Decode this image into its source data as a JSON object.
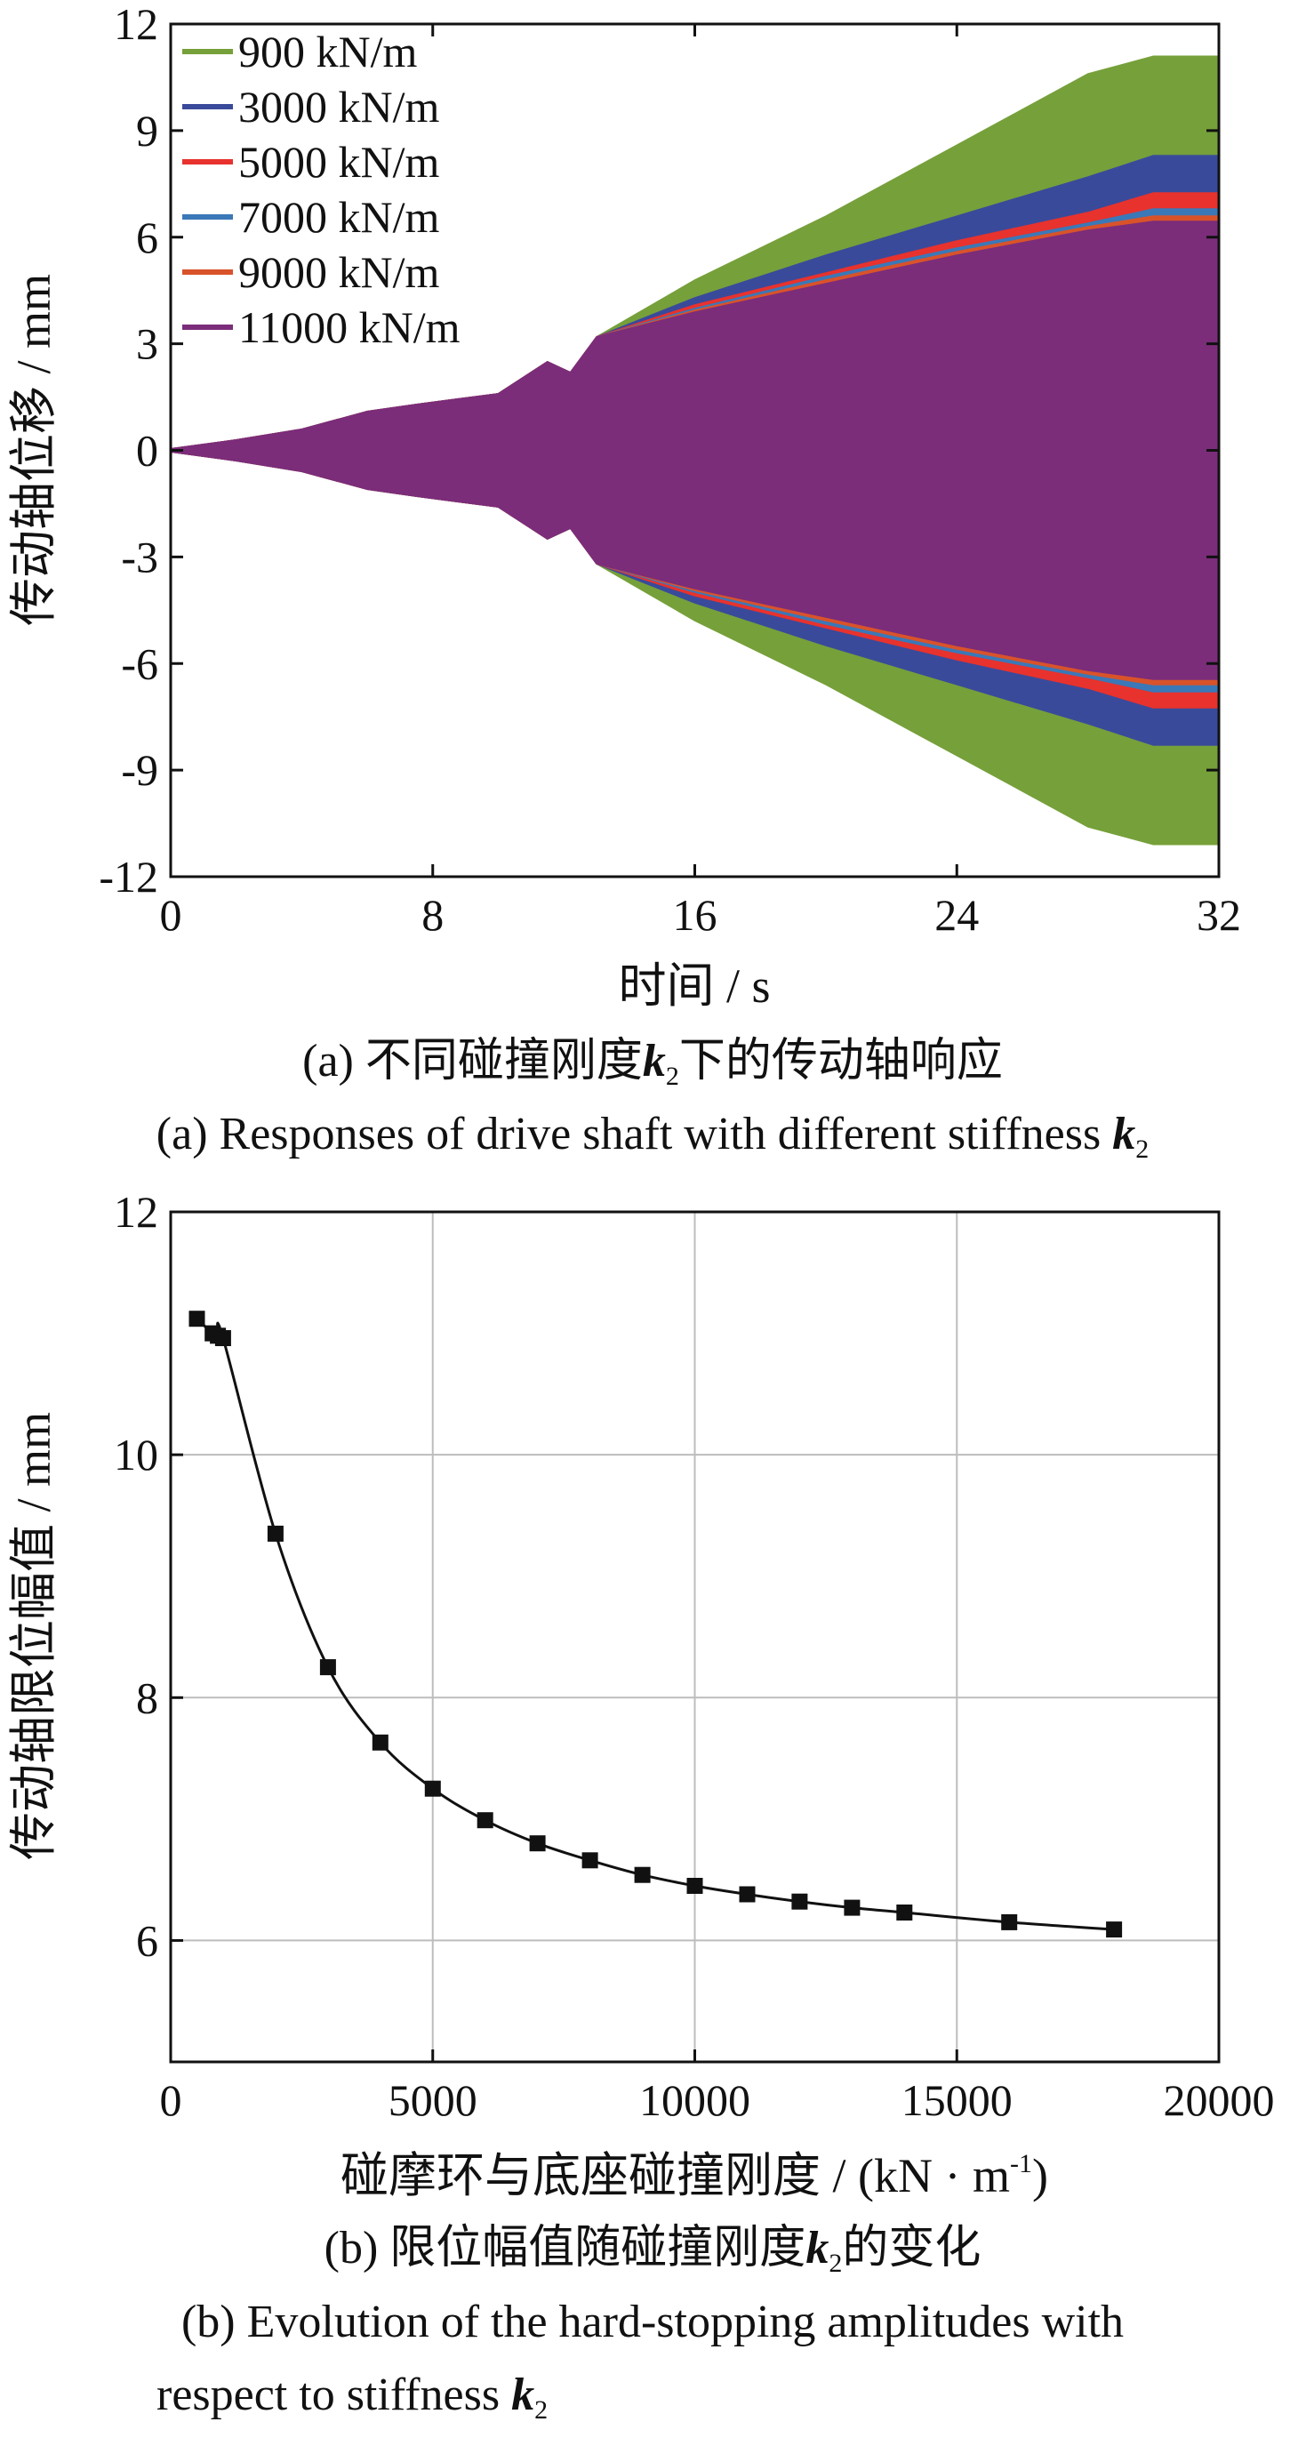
{
  "chart_data": [
    {
      "type": "area",
      "xlabel": "时间 / s",
      "ylabel": "传动轴位移 / mm",
      "xlim": [
        0,
        32
      ],
      "ylim": [
        -12,
        12
      ],
      "xticks": [
        "0",
        "8",
        "16",
        "24",
        "32"
      ],
      "yticks": [
        "12",
        "9",
        "6",
        "3",
        "0",
        "-3",
        "-6",
        "-9",
        "-12"
      ],
      "grid": false,
      "legend_position": "top-left",
      "x": [
        0,
        2,
        4,
        6,
        7.5,
        10,
        11.5,
        12.2,
        13,
        16,
        20,
        24,
        28,
        30,
        32
      ],
      "series": [
        {
          "name": "900 kN/m",
          "color": "#76a03a",
          "values": [
            0.05,
            0.3,
            0.6,
            1.1,
            1.3,
            1.6,
            2.5,
            2.2,
            3.2,
            4.8,
            6.6,
            8.6,
            10.6,
            11.1,
            11.1
          ]
        },
        {
          "name": "3000 kN/m",
          "color": "#3a4a9a",
          "values": [
            0.05,
            0.3,
            0.6,
            1.1,
            1.3,
            1.6,
            2.5,
            2.2,
            3.2,
            4.3,
            5.5,
            6.6,
            7.7,
            8.3,
            8.3
          ]
        },
        {
          "name": "5000 kN/m",
          "color": "#e8322d",
          "values": [
            0.05,
            0.3,
            0.6,
            1.1,
            1.3,
            1.6,
            2.5,
            2.2,
            3.2,
            4.1,
            5.0,
            5.9,
            6.7,
            7.25,
            7.25
          ]
        },
        {
          "name": "7000 kN/m",
          "color": "#3a78b8",
          "values": [
            0.05,
            0.3,
            0.6,
            1.1,
            1.3,
            1.6,
            2.5,
            2.2,
            3.2,
            4.0,
            4.9,
            5.7,
            6.4,
            6.8,
            6.8
          ]
        },
        {
          "name": "9000 kN/m",
          "color": "#d9532a",
          "values": [
            0.05,
            0.3,
            0.6,
            1.1,
            1.3,
            1.6,
            2.5,
            2.2,
            3.2,
            3.95,
            4.8,
            5.6,
            6.3,
            6.6,
            6.6
          ]
        },
        {
          "name": "11000 kN/m",
          "color": "#7b2d7a",
          "values": [
            0.05,
            0.3,
            0.6,
            1.1,
            1.3,
            1.6,
            2.5,
            2.2,
            3.2,
            3.9,
            4.7,
            5.5,
            6.2,
            6.45,
            6.45
          ]
        }
      ]
    },
    {
      "type": "line",
      "xlabel": "碰摩环与底座碰撞刚度 / (kN · m",
      "xlabel_sup": "-1",
      "xlabel_end": ")",
      "ylabel": "传动轴限位幅值 / mm",
      "xlim": [
        0,
        20000
      ],
      "ylim": [
        5,
        12
      ],
      "xticks": [
        "0",
        "5000",
        "10000",
        "15000",
        "20000"
      ],
      "yticks": [
        "6",
        "8",
        "10",
        "12"
      ],
      "grid": true,
      "series": [
        {
          "name": "",
          "color": "#111111",
          "x": [
            500,
            800,
            900,
            1000,
            2000,
            3000,
            4000,
            5000,
            6000,
            7000,
            8000,
            9000,
            10000,
            11000,
            12000,
            13000,
            14000,
            16000,
            18000
          ],
          "values": [
            11.12,
            11.0,
            10.98,
            10.96,
            9.35,
            8.25,
            7.63,
            7.25,
            6.99,
            6.8,
            6.66,
            6.54,
            6.45,
            6.38,
            6.32,
            6.27,
            6.23,
            6.15,
            6.09
          ]
        }
      ]
    }
  ],
  "captions": {
    "a_cn_pre": "(a) 不同碰撞刚度",
    "a_cn_var": "k",
    "a_cn_sub": "2",
    "a_cn_post": "下的传动轴响应",
    "a_en_pre": "(a) Responses of drive shaft with different stiffness ",
    "a_en_var": "k",
    "a_en_sub": "2",
    "b_cn_pre": "(b) 限位幅值随碰撞刚度",
    "b_cn_var": "k",
    "b_cn_sub": "2",
    "b_cn_post": "的变化",
    "b_en_line1": "(b) Evolution of the hard-stopping amplitudes with",
    "b_en_line2_pre": "respect to stiffness ",
    "b_en_var": "k",
    "b_en_sub": "2"
  }
}
